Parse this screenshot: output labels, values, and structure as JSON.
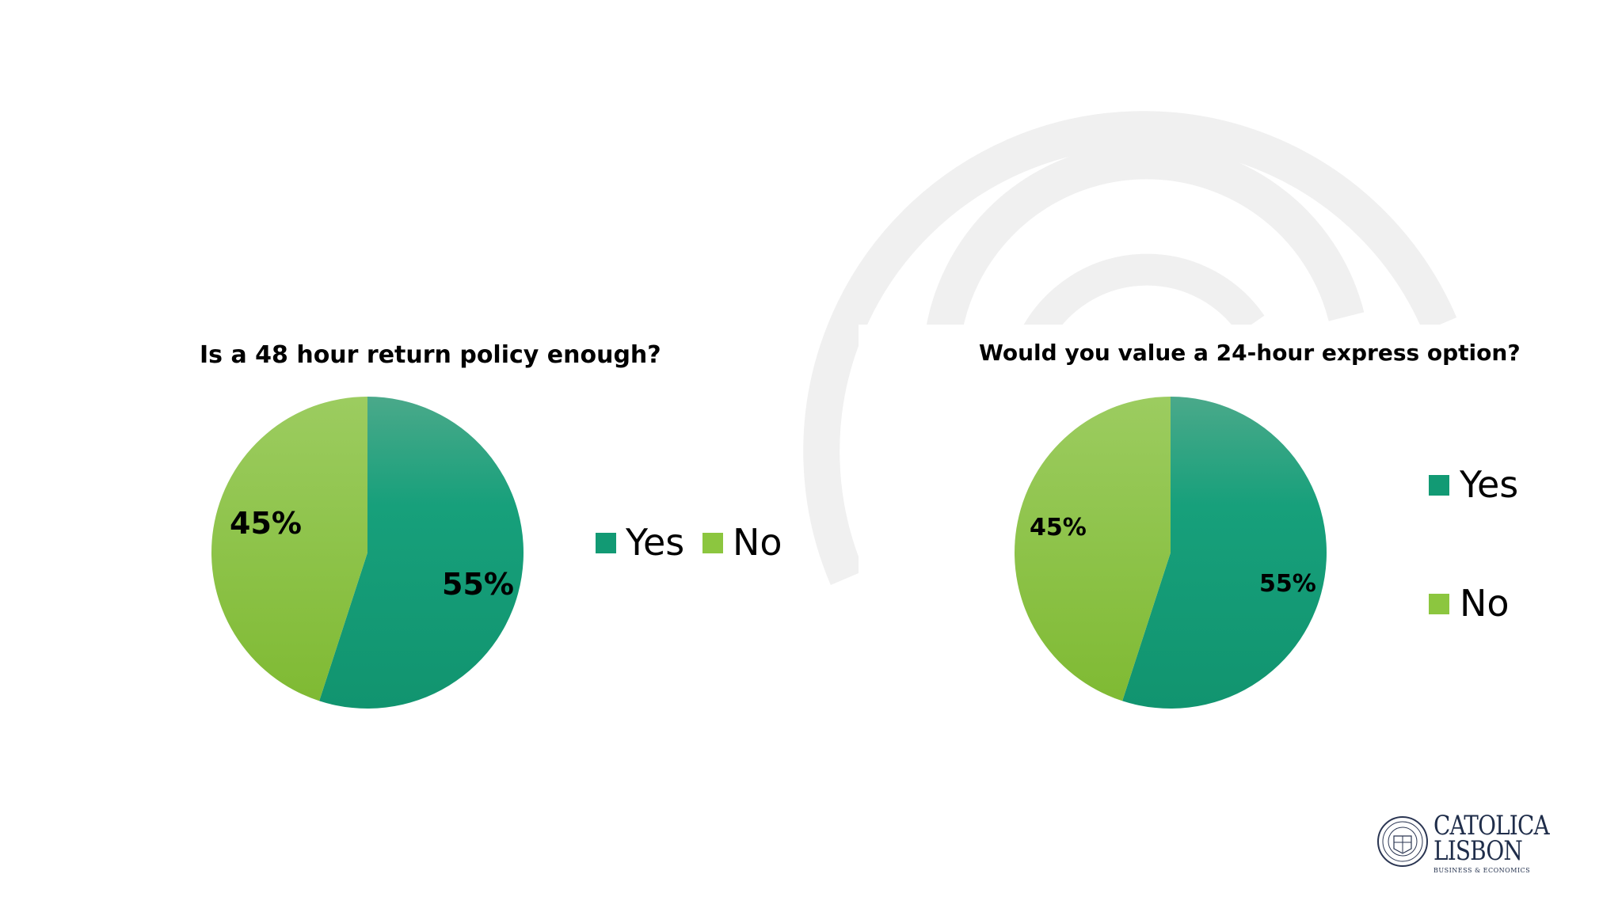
{
  "chart_data": [
    {
      "type": "pie",
      "title": "Is a 48 hour return policy enough?",
      "categories": [
        "Yes",
        "No"
      ],
      "values": [
        55,
        45
      ],
      "labels": [
        "55%",
        "45%"
      ],
      "colors": [
        "#129a74",
        "#8cc63f"
      ],
      "legend_position": "right"
    },
    {
      "type": "pie",
      "title": "Would you value a 24-hour express option?",
      "categories": [
        "Yes",
        "No"
      ],
      "values": [
        55,
        45
      ],
      "labels": [
        "55%",
        "45%"
      ],
      "colors": [
        "#129a74",
        "#8cc63f"
      ],
      "legend_position": "right"
    }
  ],
  "logo": {
    "line1": "CATOLICA",
    "line2": "LISBON",
    "line3": "BUSINESS & ECONOMICS"
  }
}
